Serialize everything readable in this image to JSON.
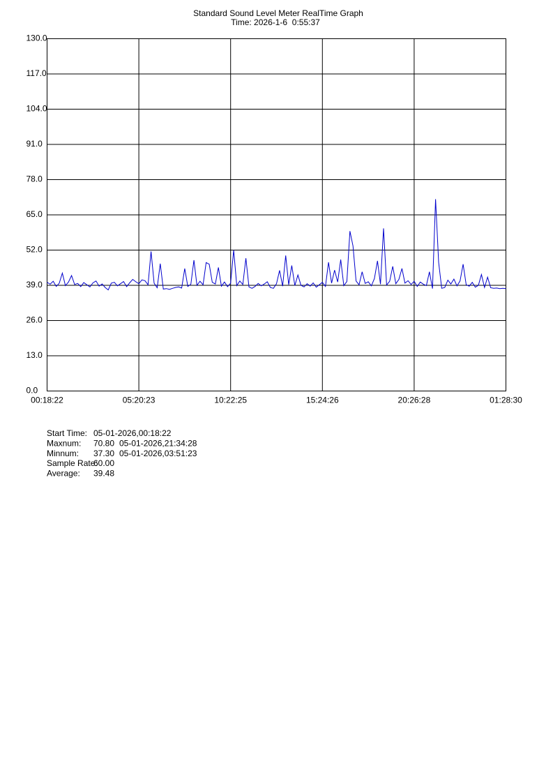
{
  "chart_data": {
    "type": "line",
    "title": "Standard Sound Level Meter RealTime Graph",
    "subtitle": "Time: 2026-1-6  0:55:37",
    "categories": [
      "00:18:22",
      null,
      null,
      null,
      null,
      null,
      null,
      null,
      null,
      null,
      null,
      null,
      null,
      null,
      null,
      null,
      null,
      null,
      null,
      null,
      null,
      null,
      null,
      null,
      null,
      null,
      null,
      null,
      null,
      null,
      "05:20:23",
      null,
      null,
      null,
      null,
      null,
      null,
      null,
      null,
      null,
      null,
      null,
      null,
      null,
      null,
      null,
      null,
      null,
      null,
      null,
      null,
      null,
      null,
      null,
      null,
      null,
      null,
      null,
      null,
      null,
      "10:22:25",
      null,
      null,
      null,
      null,
      null,
      null,
      null,
      null,
      null,
      null,
      null,
      null,
      null,
      null,
      null,
      null,
      null,
      null,
      null,
      null,
      null,
      null,
      null,
      null,
      null,
      null,
      null,
      null,
      null,
      "15:24:26",
      null,
      null,
      null,
      null,
      null,
      null,
      null,
      null,
      null,
      null,
      null,
      null,
      null,
      null,
      null,
      null,
      null,
      null,
      null,
      null,
      null,
      null,
      null,
      null,
      null,
      null,
      null,
      null,
      null,
      "20:26:28",
      null,
      null,
      null,
      null,
      null,
      null,
      null,
      null,
      null,
      null,
      null,
      null,
      null,
      null,
      null,
      null,
      null,
      null,
      null,
      null,
      null,
      null,
      null,
      null,
      null,
      null,
      null,
      null,
      null,
      "01:28:30"
    ],
    "series": [
      {
        "color": "#0000cc",
        "values": [
          40.1,
          39.4,
          40.5,
          38.6,
          39.8,
          43.5,
          38.9,
          40.2,
          42.6,
          39.3,
          39.7,
          38.5,
          40.0,
          39.2,
          38.4,
          39.9,
          40.6,
          38.7,
          39.5,
          38.2,
          37.3,
          39.8,
          40.1,
          38.8,
          39.6,
          40.4,
          38.5,
          39.9,
          41.2,
          40.3,
          39.6,
          41.0,
          40.7,
          39.2,
          51.5,
          39.8,
          38.1,
          47.0,
          37.6,
          37.8,
          37.5,
          37.9,
          38.2,
          38.4,
          38.0,
          45.2,
          38.6,
          39.4,
          48.3,
          39.0,
          40.5,
          39.2,
          47.4,
          46.8,
          40.1,
          39.5,
          45.6,
          38.7,
          40.2,
          38.5,
          39.8,
          52.0,
          38.9,
          40.6,
          39.3,
          49.0,
          38.4,
          37.9,
          38.6,
          39.7,
          38.8,
          39.5,
          40.3,
          38.2,
          37.9,
          39.6,
          44.5,
          38.7,
          50.0,
          39.2,
          46.3,
          38.9,
          42.8,
          39.0,
          38.4,
          39.6,
          38.7,
          39.9,
          38.3,
          39.2,
          40.1,
          38.6,
          47.5,
          39.8,
          44.6,
          40.2,
          48.5,
          38.9,
          40.4,
          59.0,
          53.5,
          40.6,
          39.2,
          44.0,
          39.7,
          40.3,
          38.8,
          41.5,
          48.0,
          39.4,
          60.0,
          39.1,
          40.5,
          46.0,
          39.6,
          41.2,
          45.2,
          39.8,
          40.7,
          39.3,
          40.5,
          38.6,
          40.2,
          39.4,
          38.9,
          44.0,
          37.8,
          70.8,
          47.5,
          37.9,
          38.2,
          40.9,
          39.5,
          41.3,
          38.8,
          40.6,
          46.8,
          39.2,
          38.7,
          40.1,
          38.3,
          39.0,
          43.0,
          38.2,
          42.0,
          38.1,
          37.9,
          38.0,
          37.8,
          37.9,
          37.8
        ]
      }
    ],
    "ylim": [
      0,
      130
    ],
    "yticks": [
      {
        "value": 0,
        "label": "0.0"
      },
      {
        "value": 13,
        "label": "13.0"
      },
      {
        "value": 26,
        "label": "26.0"
      },
      {
        "value": 39,
        "label": "39.0"
      },
      {
        "value": 52,
        "label": "52.0"
      },
      {
        "value": 65,
        "label": "65.0"
      },
      {
        "value": 78,
        "label": "78.0"
      },
      {
        "value": 91,
        "label": "91.0"
      },
      {
        "value": 104,
        "label": "104.0"
      },
      {
        "value": 117,
        "label": "117.0"
      },
      {
        "value": 130,
        "label": "130.0"
      }
    ],
    "grid": true
  },
  "stats": [
    {
      "label": "Start Time:",
      "value": "05-01-2026,00:18:22"
    },
    {
      "label": "Maxnum:",
      "value": "70.80",
      "time": "05-01-2026,21:34:28"
    },
    {
      "label": "Minnum:",
      "value": "37.30",
      "time": "05-01-2026,03:51:23"
    },
    {
      "label": "Sample Rate:",
      "value": "60.00"
    },
    {
      "label": "Average:",
      "value": "39.48"
    }
  ]
}
